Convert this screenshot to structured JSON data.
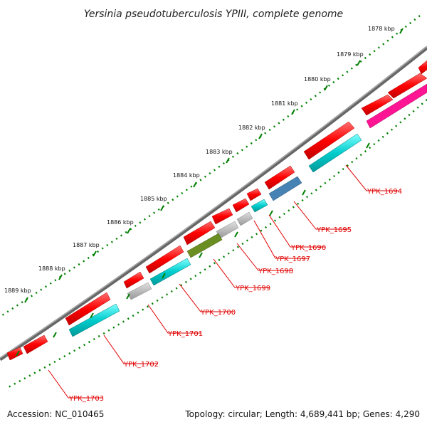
{
  "title": "Yersinia pseudotuberculosis YPIII, complete genome",
  "footer": {
    "accession": "Accession: NC_010465",
    "summary": "Topology: circular; Length: 4,689,441 bp; Genes: 4,290"
  },
  "kbp_labels": [
    "1878 kbp",
    "1879 kbp",
    "1880 kbp",
    "1881 kbp",
    "1882 kbp",
    "1883 kbp",
    "1884 kbp",
    "1885 kbp",
    "1886 kbp",
    "1887 kbp",
    "1888 kbp",
    "1889 kbp"
  ],
  "gene_labels": [
    "YPK_1694",
    "YPK_1695",
    "YPK_1696",
    "YPK_1697",
    "YPK_1698",
    "YPK_1699",
    "YPK_1700",
    "YPK_1701",
    "YPK_1702",
    "YPK_1703"
  ],
  "colors": {
    "gene": "#ff0000",
    "cds_cyan": "#00cccc",
    "cds_blue": "#4682b4",
    "cds_olive": "#6b8e23",
    "cds_gray": "#bbbbbb",
    "cds_magenta": "#ff1493",
    "tick": "#008000",
    "backbone": "#808080"
  }
}
